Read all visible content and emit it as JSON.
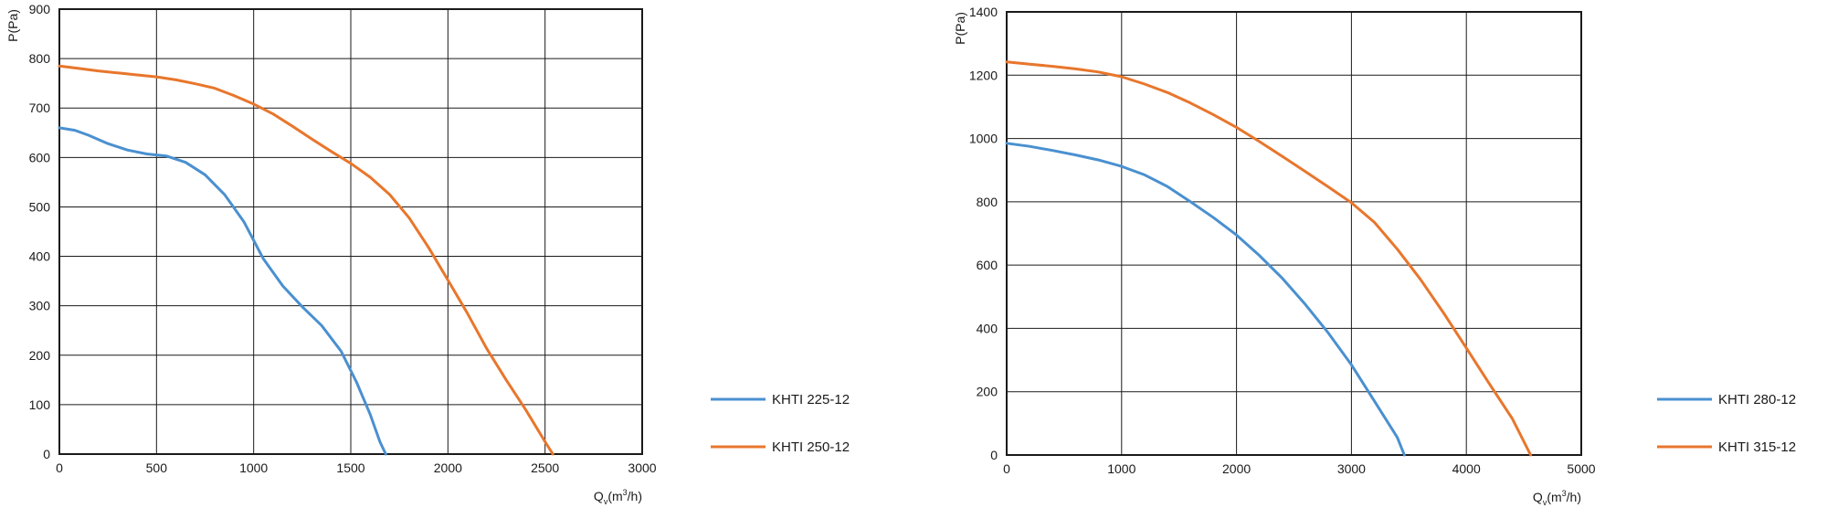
{
  "chart_data": [
    {
      "type": "line",
      "ylabel": "P(Pa)",
      "xlabel": {
        "q": "Q",
        "sub": "v",
        "unit_pre": "(m",
        "sup": "3",
        "unit_post": "/h)"
      },
      "xlim": [
        0,
        3000
      ],
      "ylim": [
        0,
        900
      ],
      "xticks": [
        "0",
        "500",
        "1000",
        "1500",
        "2000",
        "2500",
        "3000"
      ],
      "yticks": [
        "0",
        "100",
        "200",
        "300",
        "400",
        "500",
        "600",
        "700",
        "800",
        "900"
      ],
      "grid": true,
      "legend_position": "right",
      "series": [
        {
          "name": "KHTI 225-12",
          "color": "#4a90d0",
          "x": [
            0,
            80,
            150,
            250,
            350,
            450,
            550,
            650,
            750,
            850,
            950,
            1050,
            1150,
            1250,
            1350,
            1450,
            1530,
            1600,
            1650,
            1680
          ],
          "y": [
            660,
            655,
            645,
            628,
            615,
            607,
            603,
            590,
            565,
            525,
            470,
            395,
            340,
            298,
            260,
            208,
            145,
            80,
            25,
            0
          ]
        },
        {
          "name": "KHTI 250-12",
          "color": "#e8762c",
          "x": [
            0,
            100,
            200,
            300,
            400,
            500,
            600,
            700,
            800,
            900,
            1000,
            1100,
            1200,
            1300,
            1400,
            1500,
            1600,
            1700,
            1800,
            1900,
            2000,
            2100,
            2200,
            2300,
            2400,
            2500,
            2540
          ],
          "y": [
            785,
            780,
            775,
            771,
            767,
            763,
            757,
            749,
            740,
            725,
            708,
            688,
            663,
            637,
            612,
            588,
            560,
            525,
            478,
            418,
            352,
            285,
            213,
            150,
            90,
            25,
            0
          ]
        }
      ]
    },
    {
      "type": "line",
      "ylabel": "P(Pa)",
      "xlabel": {
        "q": "Q",
        "sub": "v",
        "unit_pre": "(m",
        "sup": "3",
        "unit_post": "/h)"
      },
      "xlim": [
        0,
        5000
      ],
      "ylim": [
        0,
        1400
      ],
      "xticks": [
        "0",
        "1000",
        "2000",
        "3000",
        "4000",
        "5000"
      ],
      "yticks": [
        "0",
        "200",
        "400",
        "600",
        "800",
        "1000",
        "1200",
        "1400"
      ],
      "grid": true,
      "legend_position": "right",
      "series": [
        {
          "name": "KHTI 280-12",
          "color": "#4a90d0",
          "x": [
            0,
            200,
            400,
            600,
            800,
            1000,
            1200,
            1400,
            1600,
            1800,
            2000,
            2200,
            2400,
            2600,
            2800,
            3000,
            3200,
            3400,
            3460
          ],
          "y": [
            985,
            975,
            962,
            948,
            932,
            912,
            885,
            848,
            800,
            750,
            695,
            630,
            558,
            475,
            385,
            285,
            170,
            55,
            0
          ]
        },
        {
          "name": "KHTI 315-12",
          "color": "#e8762c",
          "x": [
            0,
            200,
            400,
            600,
            800,
            1000,
            1200,
            1400,
            1600,
            1800,
            2000,
            2200,
            2400,
            2600,
            2800,
            3000,
            3200,
            3400,
            3600,
            3800,
            4000,
            4200,
            4400,
            4560
          ],
          "y": [
            1242,
            1235,
            1228,
            1220,
            1210,
            1195,
            1172,
            1145,
            1112,
            1075,
            1035,
            990,
            943,
            895,
            847,
            797,
            735,
            650,
            555,
            450,
            338,
            225,
            115,
            0
          ]
        }
      ]
    }
  ]
}
